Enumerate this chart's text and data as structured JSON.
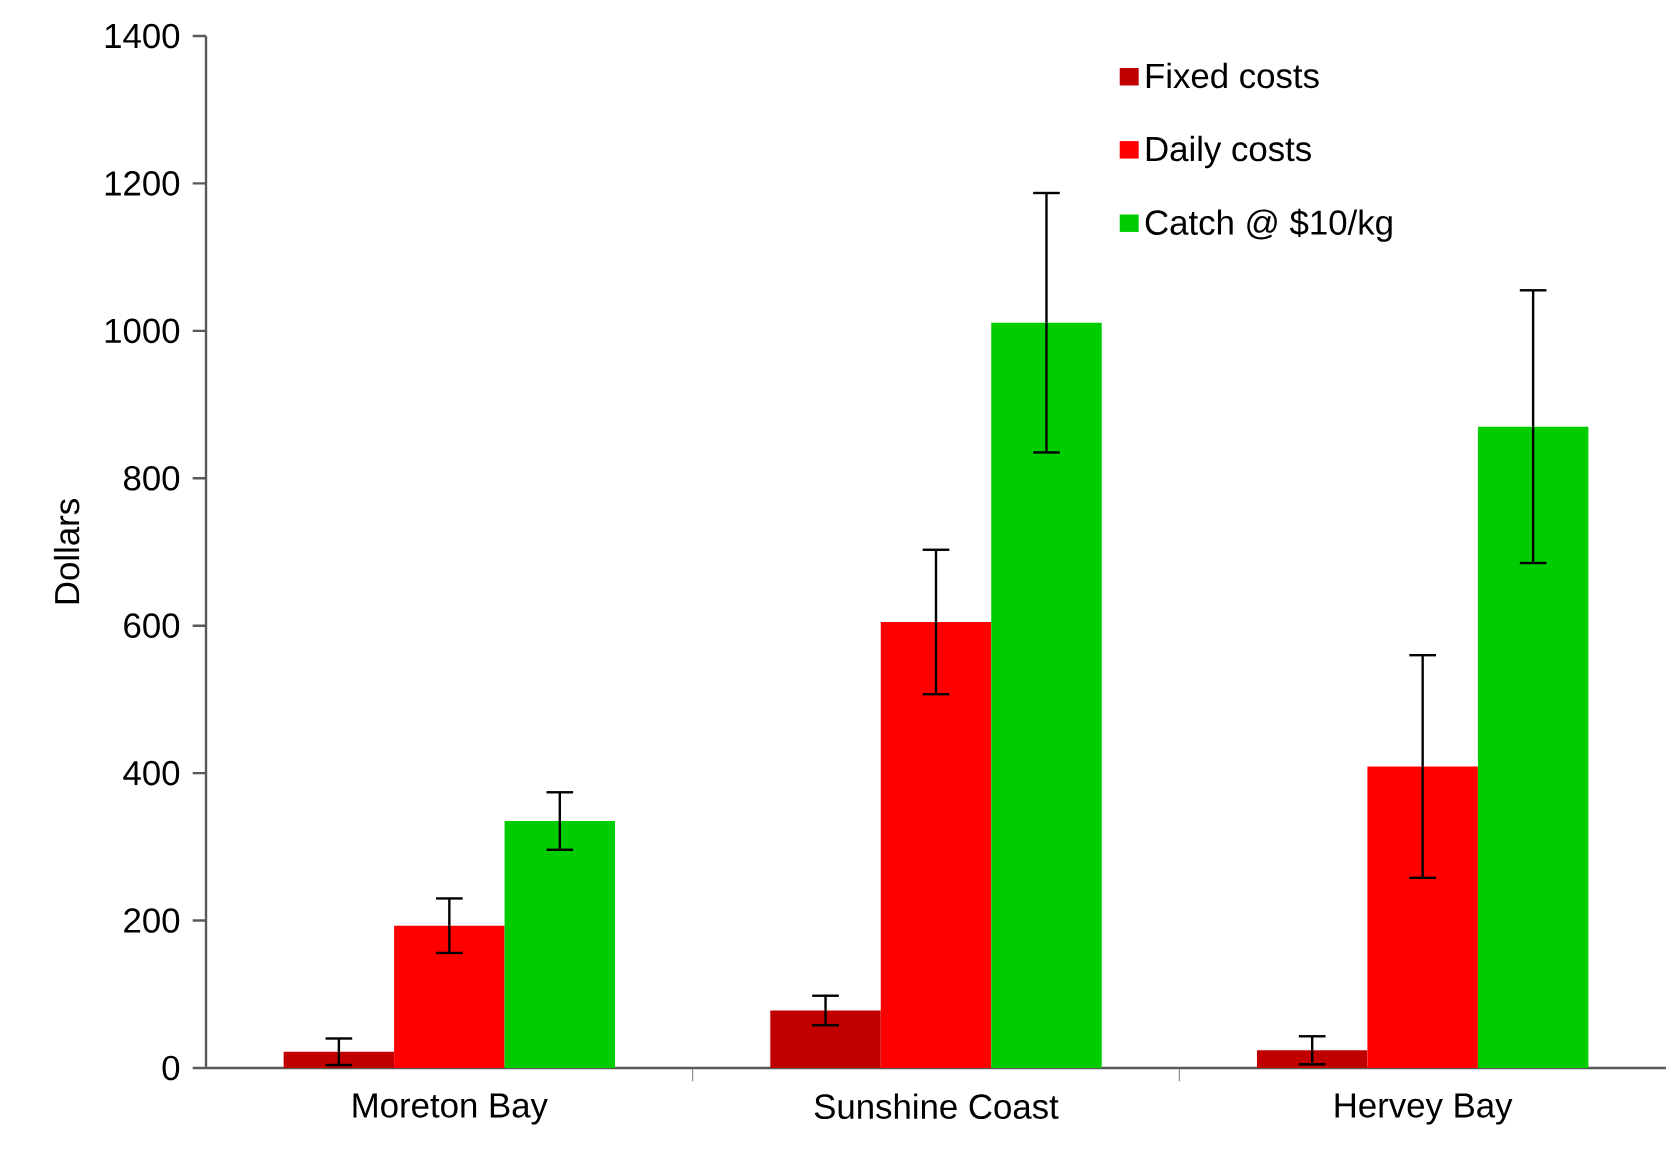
{
  "chart_data": {
    "type": "bar",
    "ylabel": "Dollars",
    "categories": [
      "Moreton Bay",
      "Sunshine Coast",
      "Hervey Bay"
    ],
    "series": [
      {
        "name": "Fixed costs",
        "color": "#c00000",
        "values": [
          22,
          78,
          24
        ],
        "errors": [
          18,
          20,
          19
        ]
      },
      {
        "name": "Daily costs",
        "color": "#ff0000",
        "values": [
          193,
          605,
          409
        ],
        "errors": [
          37,
          98,
          151
        ]
      },
      {
        "name": "Catch @ $10/kg",
        "color": "#00cc00",
        "values": [
          335,
          1011,
          870
        ],
        "errors": [
          39,
          176,
          185
        ]
      }
    ],
    "ylim": [
      0,
      1400
    ],
    "yticks": [
      0,
      200,
      400,
      600,
      800,
      1000,
      1200,
      1400
    ],
    "legend": "top right"
  }
}
